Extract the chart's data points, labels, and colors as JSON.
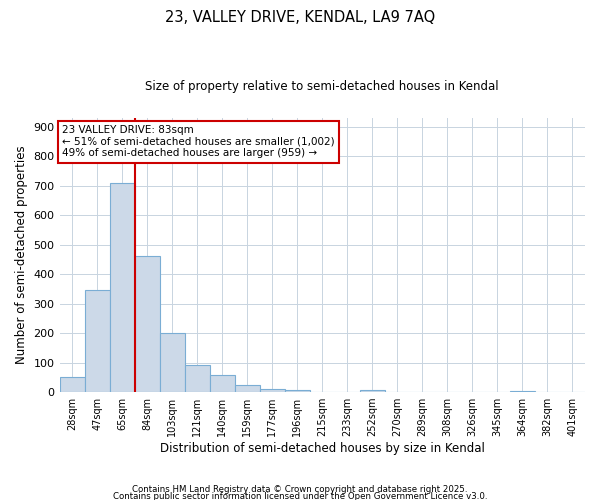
{
  "title": "23, VALLEY DRIVE, KENDAL, LA9 7AQ",
  "subtitle": "Size of property relative to semi-detached houses in Kendal",
  "xlabel": "Distribution of semi-detached houses by size in Kendal",
  "ylabel": "Number of semi-detached properties",
  "bin_labels": [
    "28sqm",
    "47sqm",
    "65sqm",
    "84sqm",
    "103sqm",
    "121sqm",
    "140sqm",
    "159sqm",
    "177sqm",
    "196sqm",
    "215sqm",
    "233sqm",
    "252sqm",
    "270sqm",
    "289sqm",
    "308sqm",
    "326sqm",
    "345sqm",
    "364sqm",
    "382sqm",
    "401sqm"
  ],
  "bar_values": [
    50,
    345,
    710,
    460,
    200,
    92,
    58,
    25,
    12,
    8,
    0,
    0,
    8,
    0,
    0,
    0,
    0,
    0,
    5,
    0,
    0
  ],
  "bar_color": "#ccd9e8",
  "bar_edge_color": "#7aadd4",
  "vline_x": 2.5,
  "vline_color": "#cc0000",
  "ylim": [
    0,
    930
  ],
  "yticks": [
    0,
    100,
    200,
    300,
    400,
    500,
    600,
    700,
    800,
    900
  ],
  "annotation_title": "23 VALLEY DRIVE: 83sqm",
  "annotation_line1": "← 51% of semi-detached houses are smaller (1,002)",
  "annotation_line2": "49% of semi-detached houses are larger (959) →",
  "annotation_box_color": "#ffffff",
  "annotation_box_edge": "#cc0000",
  "footnote1": "Contains HM Land Registry data © Crown copyright and database right 2025.",
  "footnote2": "Contains public sector information licensed under the Open Government Licence v3.0.",
  "bg_color": "#ffffff",
  "grid_color": "#c8d4e0"
}
